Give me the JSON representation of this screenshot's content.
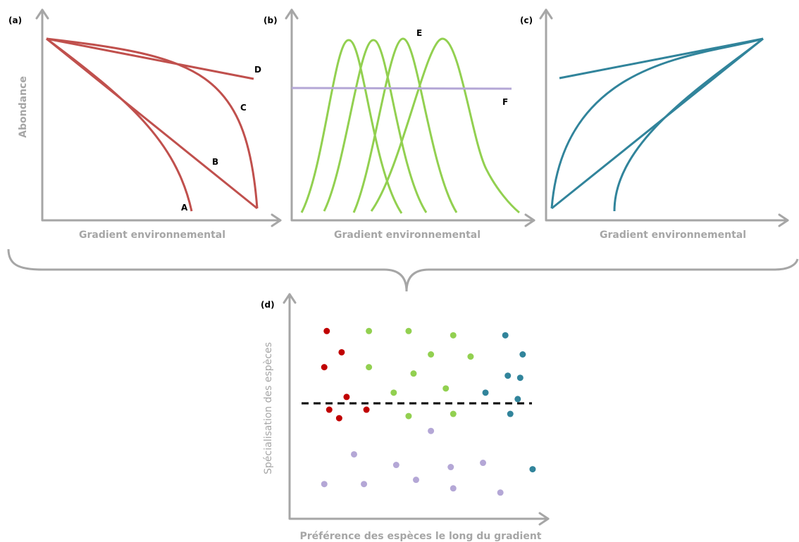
{
  "panels": {
    "a": {
      "label": "(a)",
      "y_title": "Abondance",
      "x_title": "Gradient environnemental",
      "curve_labels": [
        "A",
        "B",
        "C",
        "D"
      ],
      "color": "#c0504d"
    },
    "b": {
      "label": "(b)",
      "x_title": "Gradient environnemental",
      "curve_labels": [
        "E",
        "F"
      ],
      "colors": {
        "E": "#92d050",
        "F": "#b4a7d6"
      }
    },
    "c": {
      "label": "(c)",
      "x_title": "Gradient environnemental",
      "color": "#31849b"
    },
    "d": {
      "label": "(d)",
      "y_title": "Spécialisation des espèces",
      "x_title": "Préférence des espèces le long du gradient"
    }
  },
  "chart_data": {
    "type": "scatter",
    "title": "",
    "xlabel": "Préférence des espèces le long du gradient",
    "ylabel": "Spécialisation des espèces",
    "xlim": [
      0,
      100
    ],
    "ylim": [
      0,
      100
    ],
    "threshold_line": {
      "y": 52,
      "style": "dashed",
      "color": "#000000"
    },
    "series": [
      {
        "color": "#c00000",
        "points": [
          [
            13,
            86
          ],
          [
            19,
            76
          ],
          [
            12,
            69
          ],
          [
            21,
            55
          ],
          [
            14,
            49
          ],
          [
            18,
            45
          ],
          [
            29,
            49
          ]
        ]
      },
      {
        "color": "#92d050",
        "points": [
          [
            30,
            86
          ],
          [
            46,
            86
          ],
          [
            64,
            84
          ],
          [
            55,
            75
          ],
          [
            71,
            74
          ],
          [
            30,
            69
          ],
          [
            48,
            66
          ],
          [
            40,
            57
          ],
          [
            61,
            59
          ],
          [
            46,
            46
          ],
          [
            64,
            47
          ]
        ]
      },
      {
        "color": "#31849b",
        "points": [
          [
            85,
            84
          ],
          [
            92,
            75
          ],
          [
            86,
            65
          ],
          [
            91,
            64
          ],
          [
            77,
            57
          ],
          [
            90,
            54
          ],
          [
            87,
            47
          ],
          [
            96,
            21
          ]
        ]
      },
      {
        "color": "#b4a7d6",
        "points": [
          [
            55,
            39
          ],
          [
            24,
            28
          ],
          [
            41,
            23
          ],
          [
            63,
            22
          ],
          [
            76,
            24
          ],
          [
            12,
            14
          ],
          [
            28,
            14
          ],
          [
            49,
            16
          ],
          [
            64,
            12
          ],
          [
            83,
            10
          ]
        ]
      }
    ]
  }
}
